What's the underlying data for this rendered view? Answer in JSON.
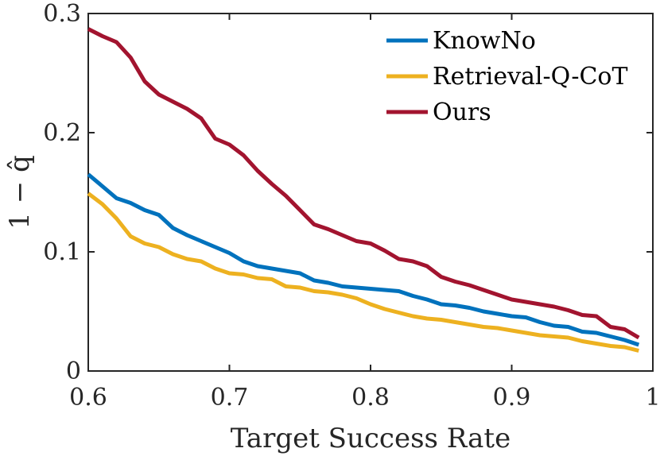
{
  "chart_data": {
    "type": "line",
    "title": "",
    "xlabel": "Target Success Rate",
    "ylabel": "1 − q̂",
    "xlim": [
      0.6,
      1.0
    ],
    "ylim": [
      0,
      0.3
    ],
    "xticks": [
      0.6,
      0.7,
      0.8,
      0.9,
      1.0
    ],
    "xtick_labels": [
      "0.6",
      "0.7",
      "0.8",
      "0.9",
      "1"
    ],
    "yticks": [
      0,
      0.1,
      0.2,
      0.3
    ],
    "ytick_labels": [
      "0",
      "0.1",
      "0.2",
      "0.3"
    ],
    "grid": false,
    "legend_position": "top-right",
    "x": [
      0.6,
      0.61,
      0.62,
      0.63,
      0.64,
      0.65,
      0.66,
      0.67,
      0.68,
      0.69,
      0.7,
      0.71,
      0.72,
      0.73,
      0.74,
      0.75,
      0.76,
      0.77,
      0.78,
      0.79,
      0.8,
      0.81,
      0.82,
      0.83,
      0.84,
      0.85,
      0.86,
      0.87,
      0.88,
      0.89,
      0.9,
      0.91,
      0.92,
      0.93,
      0.94,
      0.95,
      0.96,
      0.97,
      0.98,
      0.99
    ],
    "series": [
      {
        "name": "KnowNo",
        "color": "#0072BD",
        "values": [
          0.165,
          0.155,
          0.145,
          0.141,
          0.135,
          0.131,
          0.12,
          0.114,
          0.109,
          0.104,
          0.099,
          0.092,
          0.088,
          0.086,
          0.084,
          0.082,
          0.076,
          0.074,
          0.071,
          0.07,
          0.069,
          0.068,
          0.067,
          0.063,
          0.06,
          0.056,
          0.055,
          0.053,
          0.05,
          0.048,
          0.046,
          0.045,
          0.041,
          0.038,
          0.037,
          0.033,
          0.032,
          0.029,
          0.026,
          0.022
        ]
      },
      {
        "name": "Retrieval-Q-CoT",
        "color": "#EDB120",
        "values": [
          0.149,
          0.14,
          0.128,
          0.113,
          0.107,
          0.104,
          0.098,
          0.094,
          0.092,
          0.086,
          0.082,
          0.081,
          0.078,
          0.077,
          0.071,
          0.07,
          0.067,
          0.066,
          0.064,
          0.061,
          0.056,
          0.052,
          0.049,
          0.046,
          0.044,
          0.043,
          0.041,
          0.039,
          0.037,
          0.036,
          0.034,
          0.032,
          0.03,
          0.029,
          0.028,
          0.025,
          0.023,
          0.021,
          0.02,
          0.017
        ]
      },
      {
        "name": "Ours",
        "color": "#A2142F",
        "values": [
          0.287,
          0.281,
          0.276,
          0.263,
          0.243,
          0.232,
          0.226,
          0.22,
          0.212,
          0.195,
          0.19,
          0.181,
          0.168,
          0.157,
          0.147,
          0.135,
          0.123,
          0.119,
          0.114,
          0.109,
          0.107,
          0.101,
          0.094,
          0.092,
          0.088,
          0.079,
          0.075,
          0.072,
          0.068,
          0.064,
          0.06,
          0.058,
          0.056,
          0.054,
          0.051,
          0.047,
          0.046,
          0.037,
          0.035,
          0.028
        ]
      }
    ]
  }
}
